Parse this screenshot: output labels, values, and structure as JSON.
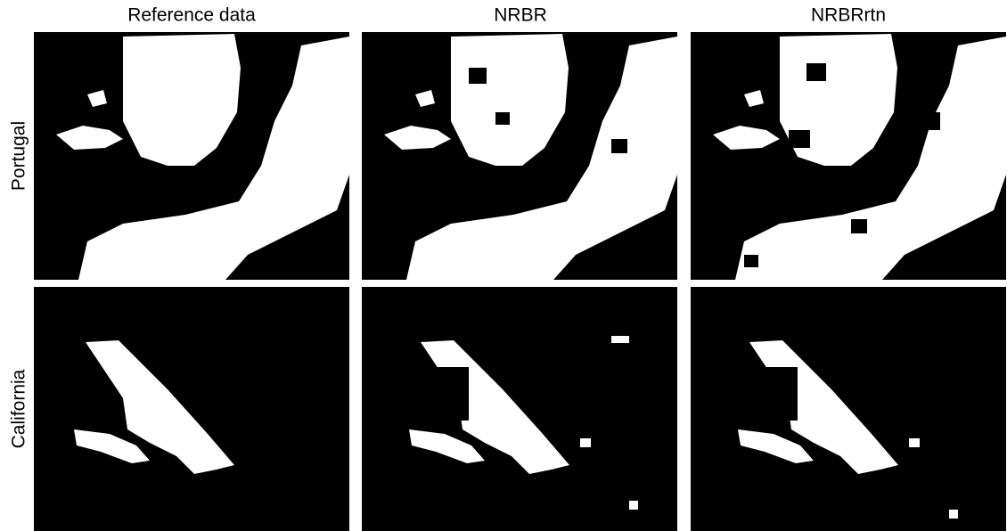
{
  "columns": [
    "Reference data",
    "NRBR",
    "NRBRrtn"
  ],
  "rows": [
    "Portugal",
    "California"
  ]
}
